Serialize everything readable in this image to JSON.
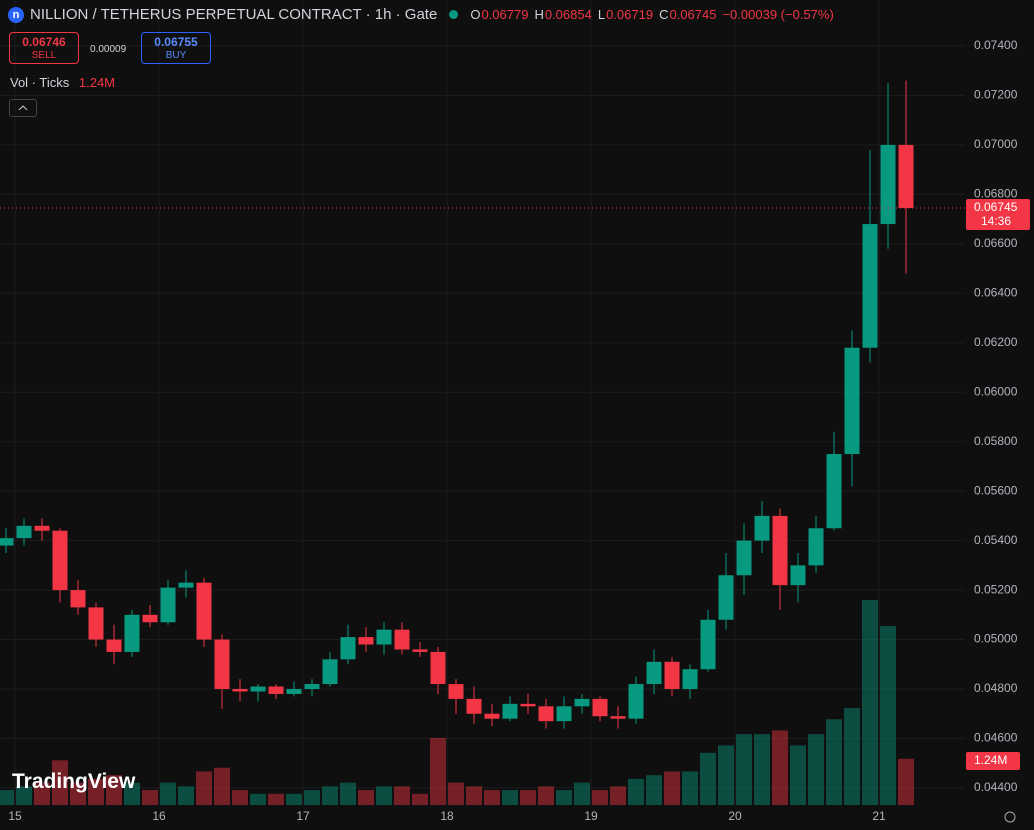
{
  "header": {
    "symbol": "NILLION / TETHERUS PERPETUAL CONTRACT · 1h · Gate",
    "stats": [
      {
        "label": "O",
        "value": "0.06779"
      },
      {
        "label": "H",
        "value": "0.06854"
      },
      {
        "label": "L",
        "value": "0.06719"
      },
      {
        "label": "C",
        "value": "0.06745"
      }
    ],
    "change": "−0.00039 (−0.57%)",
    "sell": {
      "price": "0.06746",
      "label": "SELL"
    },
    "spread": "0.00009",
    "buy": {
      "price": "0.06755",
      "label": "BUY"
    },
    "volume_legend": {
      "label": "Vol · Ticks",
      "value": "1.24M"
    }
  },
  "branding": "TradingView",
  "chart_data": {
    "type": "candlestick",
    "up_color": "#089981",
    "down_color": "#f23645",
    "grid": true,
    "x": [
      -3,
      0,
      3,
      6,
      9,
      12,
      15,
      18,
      21,
      24,
      27,
      30,
      33,
      36,
      39,
      42,
      45,
      48,
      51,
      54,
      57,
      60,
      63,
      66,
      69,
      72,
      75,
      78,
      81,
      84,
      87,
      90,
      93,
      96,
      99,
      102,
      105,
      108,
      111,
      114,
      117,
      120,
      123,
      126,
      129,
      132,
      135,
      138,
      141,
      144,
      147
    ],
    "open": [
      0.0538,
      0.0541,
      0.0546,
      0.0544,
      0.052,
      0.0513,
      0.05,
      0.0495,
      0.051,
      0.0507,
      0.0521,
      0.0523,
      0.05,
      0.048,
      0.0479,
      0.0481,
      0.0478,
      0.048,
      0.0482,
      0.0492,
      0.0501,
      0.0498,
      0.0504,
      0.0496,
      0.0495,
      0.0482,
      0.0476,
      0.047,
      0.0468,
      0.0474,
      0.0473,
      0.0467,
      0.0473,
      0.0476,
      0.0469,
      0.0468,
      0.0482,
      0.0491,
      0.048,
      0.0488,
      0.0508,
      0.0526,
      0.054,
      0.055,
      0.0522,
      0.053,
      0.0545,
      0.0575,
      0.0618,
      0.0668,
      0.07
    ],
    "high": [
      0.0545,
      0.0549,
      0.0549,
      0.0545,
      0.0524,
      0.0515,
      0.0506,
      0.0512,
      0.0514,
      0.0524,
      0.0528,
      0.0525,
      0.0502,
      0.0484,
      0.0482,
      0.0482,
      0.0483,
      0.0484,
      0.0495,
      0.0506,
      0.0505,
      0.0507,
      0.0507,
      0.0499,
      0.0497,
      0.0484,
      0.0481,
      0.0474,
      0.0477,
      0.0478,
      0.0476,
      0.0477,
      0.0478,
      0.0477,
      0.0473,
      0.0485,
      0.0496,
      0.0493,
      0.049,
      0.0512,
      0.0535,
      0.0547,
      0.0556,
      0.0553,
      0.0535,
      0.055,
      0.0584,
      0.0625,
      0.0698,
      0.0725,
      0.0726
    ],
    "low": [
      0.0535,
      0.0538,
      0.054,
      0.0515,
      0.051,
      0.0497,
      0.049,
      0.0493,
      0.0505,
      0.0506,
      0.0517,
      0.0497,
      0.0472,
      0.0475,
      0.0475,
      0.0476,
      0.0477,
      0.0477,
      0.0481,
      0.049,
      0.0495,
      0.0494,
      0.0494,
      0.0493,
      0.0478,
      0.047,
      0.0466,
      0.0465,
      0.0467,
      0.047,
      0.0464,
      0.0464,
      0.047,
      0.0467,
      0.0464,
      0.0466,
      0.0478,
      0.0477,
      0.0476,
      0.0487,
      0.0504,
      0.0518,
      0.0535,
      0.0512,
      0.0515,
      0.0527,
      0.0544,
      0.0562,
      0.0612,
      0.0658,
      0.0648
    ],
    "close": [
      0.0541,
      0.0546,
      0.0544,
      0.052,
      0.0513,
      0.05,
      0.0495,
      0.051,
      0.0507,
      0.0521,
      0.0523,
      0.05,
      0.048,
      0.0479,
      0.0481,
      0.0478,
      0.048,
      0.0482,
      0.0492,
      0.0501,
      0.0498,
      0.0504,
      0.0496,
      0.0495,
      0.0482,
      0.0476,
      0.047,
      0.0468,
      0.0474,
      0.0473,
      0.0467,
      0.0473,
      0.0476,
      0.0469,
      0.0468,
      0.0482,
      0.0491,
      0.048,
      0.0488,
      0.0508,
      0.0526,
      0.054,
      0.055,
      0.0522,
      0.053,
      0.0545,
      0.0575,
      0.0618,
      0.0668,
      0.07,
      0.06745
    ],
    "volume": [
      400000,
      500000,
      600000,
      1200000,
      600000,
      700000,
      800000,
      600000,
      400000,
      600000,
      500000,
      900000,
      1000000,
      400000,
      300000,
      300000,
      300000,
      400000,
      500000,
      600000,
      400000,
      500000,
      500000,
      300000,
      1800000,
      600000,
      500000,
      400000,
      400000,
      400000,
      500000,
      400000,
      600000,
      400000,
      500000,
      700000,
      800000,
      900000,
      900000,
      1400000,
      1600000,
      1900000,
      1900000,
      2000000,
      1600000,
      1900000,
      2300000,
      2600000,
      5500000,
      4800000,
      1240000
    ],
    "volume_labels": [
      null,
      null,
      null,
      null,
      null,
      null,
      null,
      null,
      null,
      null,
      null,
      null,
      null,
      null,
      null,
      null,
      null,
      null,
      null,
      null,
      null,
      null,
      null,
      null,
      null,
      null,
      null,
      null,
      null,
      null,
      null,
      null,
      null,
      null,
      null,
      null,
      null,
      null,
      null,
      null,
      null,
      null,
      null,
      null,
      null,
      null,
      null,
      null,
      null,
      null,
      "1.24M"
    ],
    "xlim": [
      -2.5,
      158.33
    ],
    "xticks": [
      {
        "value": 0,
        "label": "15"
      },
      {
        "value": 24,
        "label": "16"
      },
      {
        "value": 48,
        "label": "17"
      },
      {
        "value": 72,
        "label": "18"
      },
      {
        "value": 96,
        "label": "19"
      },
      {
        "value": 120,
        "label": "20"
      },
      {
        "value": 144,
        "label": "21"
      }
    ],
    "ylim": [
      0.04331,
      0.07586
    ],
    "yticks": [
      {
        "value": 0.044,
        "label": "0.04400"
      },
      {
        "value": 0.046,
        "label": "0.04600"
      },
      {
        "value": 0.048,
        "label": "0.04800"
      },
      {
        "value": 0.05,
        "label": "0.05000"
      },
      {
        "value": 0.052,
        "label": "0.05200"
      },
      {
        "value": 0.054,
        "label": "0.05400"
      },
      {
        "value": 0.056,
        "label": "0.05600"
      },
      {
        "value": 0.058,
        "label": "0.05800"
      },
      {
        "value": 0.06,
        "label": "0.06000"
      },
      {
        "value": 0.062,
        "label": "0.06200"
      },
      {
        "value": 0.064,
        "label": "0.06400"
      },
      {
        "value": 0.066,
        "label": "0.06600"
      },
      {
        "value": 0.068,
        "label": "0.06800"
      },
      {
        "value": 0.07,
        "label": "0.07000"
      },
      {
        "value": 0.072,
        "label": "0.07200"
      },
      {
        "value": 0.074,
        "label": "0.07400"
      }
    ],
    "price_line": {
      "value": 0.06745,
      "label": "0.06745",
      "countdown": "14:36"
    }
  }
}
